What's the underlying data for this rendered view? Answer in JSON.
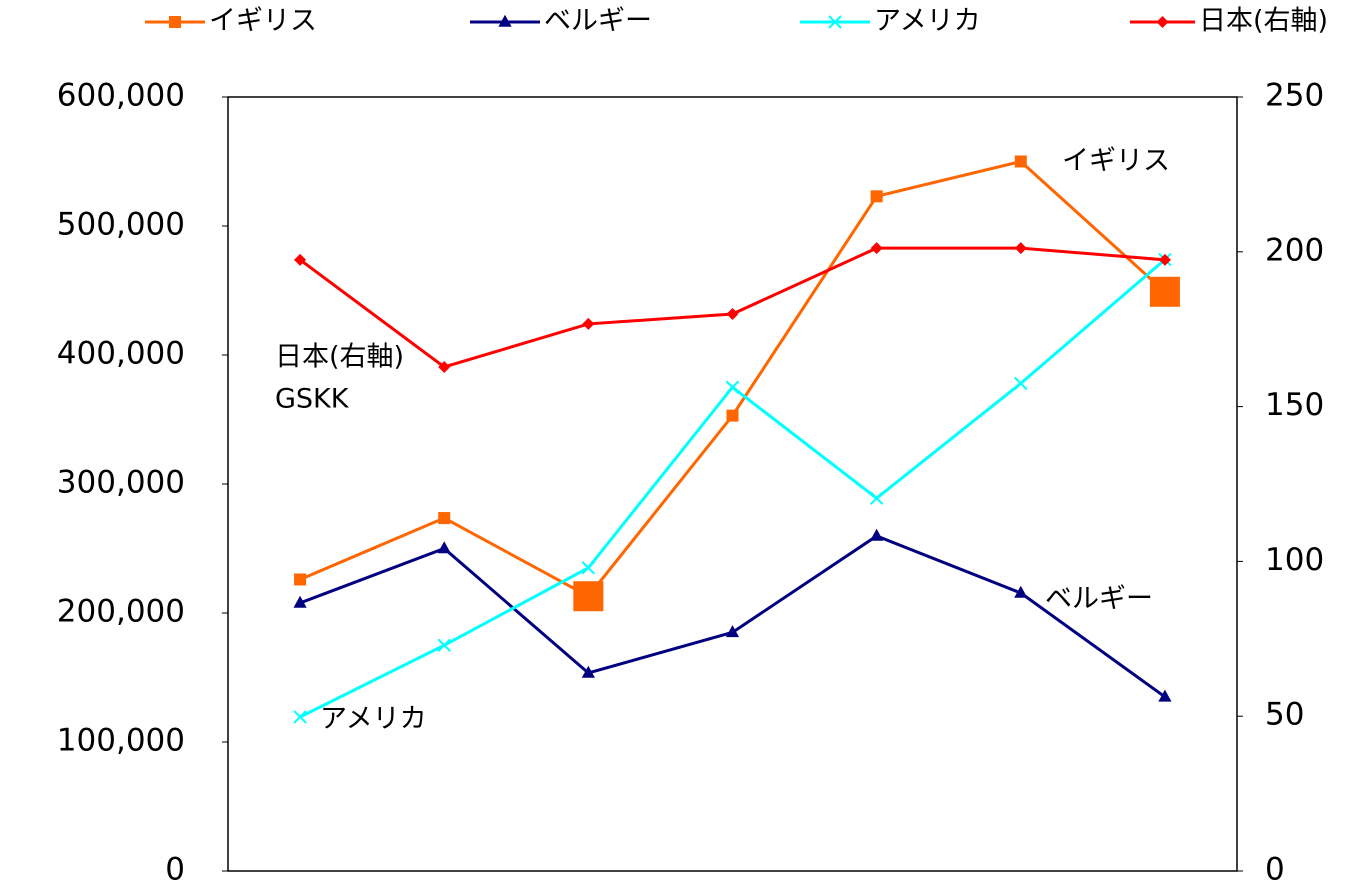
{
  "chart_data": {
    "type": "line",
    "categories": [
      null,
      null,
      null,
      null,
      null,
      null,
      null
    ],
    "series": [
      {
        "name": "イギリス",
        "color": "#ff6600",
        "marker": "square",
        "values": [
          226000,
          273600,
          213000,
          353000,
          523000,
          550000,
          449000
        ],
        "highlighted_points": [
          2,
          6
        ]
      },
      {
        "name": "ベルギー",
        "color": "#000080",
        "marker": "triangle",
        "values": [
          207800,
          250000,
          153500,
          185000,
          259700,
          215500,
          135000
        ]
      },
      {
        "name": "アメリカ",
        "color": "#00ffff",
        "marker": "x",
        "values": [
          119400,
          175000,
          235000,
          375000,
          289000,
          378000,
          474000
        ]
      },
      {
        "name": "日本(右軸)",
        "color": "#ff0000",
        "marker": "diamond",
        "axis": "y2",
        "values": [
          197.4,
          162.8,
          176.7,
          179.9,
          201.2,
          201.2,
          197.4
        ]
      }
    ],
    "ylim": [
      0,
      600000
    ],
    "yticks": [
      0,
      {
        "value": 100000,
        "label": "100,000"
      },
      {
        "value": 200000,
        "label": "200,000"
      },
      {
        "value": 300000,
        "label": "300,000"
      },
      {
        "value": 400000,
        "label": "400,000"
      },
      {
        "value": 500000,
        "label": "500,000"
      },
      {
        "value": 600000,
        "label": "600,000"
      }
    ],
    "y2lim": [
      0,
      250
    ],
    "y2ticks": [
      0,
      50,
      100,
      150,
      200,
      250
    ],
    "legend": "top",
    "annotations": [
      "イギリス",
      "ベルギー",
      "アメリカ",
      "日本(右軸)",
      "GSKK"
    ]
  }
}
